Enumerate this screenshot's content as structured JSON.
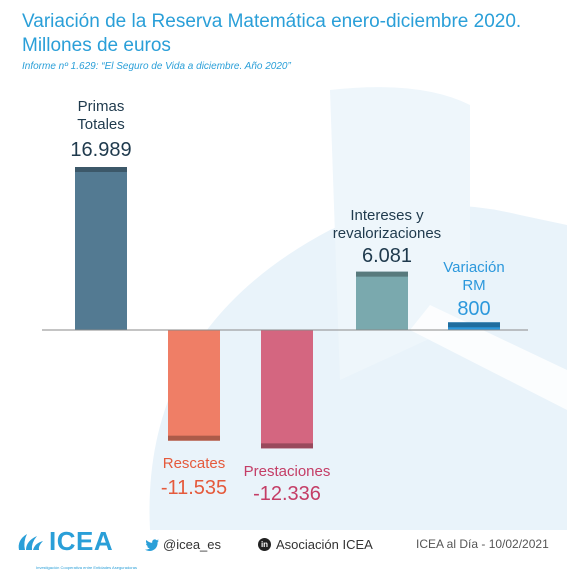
{
  "title": "Variación de la Reserva Matemática enero-diciembre 2020. Millones de euros",
  "subtitle": "Informe nº 1.629: “El Seguro de Vida a diciembre. Año 2020”",
  "chart_data": {
    "type": "bar",
    "categories": [
      "Primas Totales",
      "Rescates",
      "Prestaciones",
      "Intereses y revalorizaciones",
      "Variación RM"
    ],
    "values": [
      16989,
      -11535,
      -12336,
      6081,
      800
    ],
    "value_labels": [
      "16.989",
      "-11.535",
      "-12.336",
      "6.081",
      "800"
    ],
    "colors": {
      "Primas Totales": "#537a92",
      "Rescates": "#ef7e66",
      "Prestaciones": "#d46680",
      "Intereses y revalorizaciones": "#7aa9ae",
      "Variación RM": "#2c98dc"
    },
    "label_colors": {
      "Primas Totales": "#1f3a4d",
      "Rescates": "#e55a3c",
      "Prestaciones": "#c43d66",
      "Intereses y revalorizaciones": "#1f3a4d",
      "Variación RM": "#2c98dc"
    },
    "title": "Variación de la Reserva Matemática enero-diciembre 2020. Millones de euros",
    "xlabel": "",
    "ylabel": "",
    "grid": false
  },
  "footer": {
    "logo": "ICEA",
    "logo_tagline": "Investigación Cooperativa entre Entidades Aseguradoras",
    "twitter": "@icea_es",
    "twitter_icon": "twitter-bird-icon",
    "linkedin": "Asociación ICEA",
    "linkedin_icon": "linkedin-icon",
    "date": "ICEA al Día - 10/02/2021"
  }
}
